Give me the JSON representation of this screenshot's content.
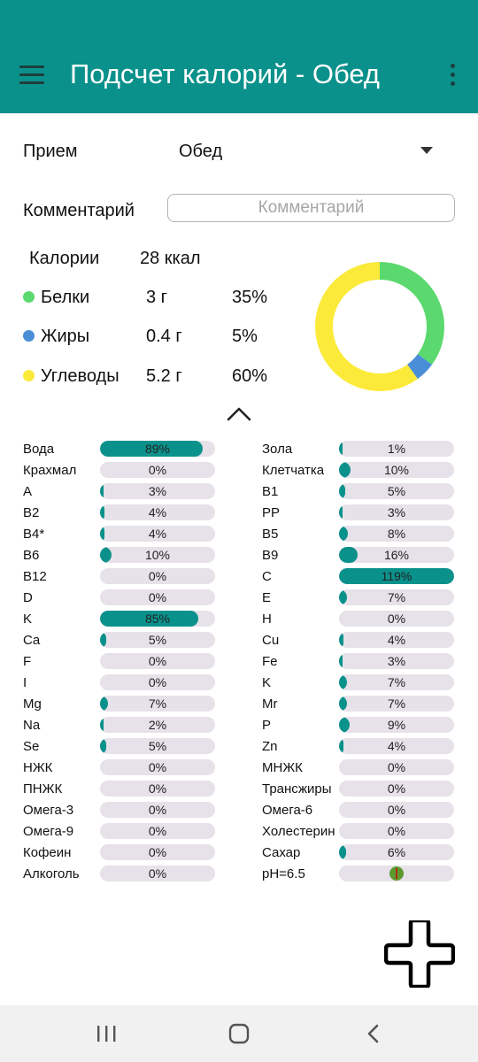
{
  "appbar": {
    "title": "Подсчет калорий - Обед",
    "menu_icon": "hamburger-menu-icon",
    "more_icon": "more-vert-icon",
    "color": "#0b918b"
  },
  "meal": {
    "label": "Прием",
    "value": "Обед"
  },
  "comment": {
    "label": "Комментарий",
    "placeholder": "Комментарий",
    "value": ""
  },
  "summary": {
    "calories_label": "Калории",
    "calories_value": "28 ккал",
    "macros": [
      {
        "name": "Белки",
        "amount": "3 г",
        "percent": "35%",
        "share": 35,
        "color": "#5bd96e"
      },
      {
        "name": "Жиры",
        "amount": "0.4 г",
        "percent": "5%",
        "share": 5,
        "color": "#4a8ed8"
      },
      {
        "name": "Углеводы",
        "amount": "5.2 г",
        "percent": "60%",
        "share": 60,
        "color": "#fbea3a"
      }
    ]
  },
  "nutrients_left": [
    {
      "name": "Вода",
      "text": "89%",
      "value": 89
    },
    {
      "name": "Крахмал",
      "text": "0%",
      "value": 0
    },
    {
      "name": "A",
      "text": "3%",
      "value": 3
    },
    {
      "name": "B2",
      "text": "4%",
      "value": 4
    },
    {
      "name": "B4*",
      "text": "4%",
      "value": 4
    },
    {
      "name": "B6",
      "text": "10%",
      "value": 10
    },
    {
      "name": "B12",
      "text": "0%",
      "value": 0
    },
    {
      "name": "D",
      "text": "0%",
      "value": 0
    },
    {
      "name": "K",
      "text": "85%",
      "value": 85
    },
    {
      "name": "Ca",
      "text": "5%",
      "value": 5
    },
    {
      "name": "F",
      "text": "0%",
      "value": 0
    },
    {
      "name": "I",
      "text": "0%",
      "value": 0
    },
    {
      "name": "Mg",
      "text": "7%",
      "value": 7
    },
    {
      "name": "Na",
      "text": "2%",
      "value": 2
    },
    {
      "name": "Se",
      "text": "5%",
      "value": 5
    },
    {
      "name": "НЖК",
      "text": "0%",
      "value": 0
    },
    {
      "name": "ПНЖК",
      "text": "0%",
      "value": 0
    },
    {
      "name": "Омега-3",
      "text": "0%",
      "value": 0
    },
    {
      "name": "Омега-9",
      "text": "0%",
      "value": 0
    },
    {
      "name": "Кофеин",
      "text": "0%",
      "value": 0
    },
    {
      "name": "Алкоголь",
      "text": "0%",
      "value": 0
    }
  ],
  "nutrients_right": [
    {
      "name": "Зола",
      "text": "1%",
      "value": 1
    },
    {
      "name": "Клетчатка",
      "text": "10%",
      "value": 10
    },
    {
      "name": "B1",
      "text": "5%",
      "value": 5
    },
    {
      "name": "PP",
      "text": "3%",
      "value": 3
    },
    {
      "name": "B5",
      "text": "8%",
      "value": 8
    },
    {
      "name": "B9",
      "text": "16%",
      "value": 16
    },
    {
      "name": "C",
      "text": "119%",
      "value": 119
    },
    {
      "name": "E",
      "text": "7%",
      "value": 7
    },
    {
      "name": "H",
      "text": "0%",
      "value": 0
    },
    {
      "name": "Cu",
      "text": "4%",
      "value": 4
    },
    {
      "name": "Fe",
      "text": "3%",
      "value": 3
    },
    {
      "name": "K",
      "text": "7%",
      "value": 7
    },
    {
      "name": "Mr",
      "text": "7%",
      "value": 7
    },
    {
      "name": "P",
      "text": "9%",
      "value": 9
    },
    {
      "name": "Zn",
      "text": "4%",
      "value": 4
    },
    {
      "name": "МНЖК",
      "text": "0%",
      "value": 0
    },
    {
      "name": "Трансжиры",
      "text": "0%",
      "value": 0
    },
    {
      "name": "Омега-6",
      "text": "0%",
      "value": 0
    },
    {
      "name": "Холестерин",
      "text": "0%",
      "value": 0
    },
    {
      "name": "Сахар",
      "text": "6%",
      "value": 6
    },
    {
      "name": "pH=6.5",
      "text": "",
      "value": null,
      "indicator": "ph-indicator-icon"
    }
  ],
  "icons": {
    "collapse": "chevron-up-icon",
    "fab": "add-plus-icon",
    "nav": [
      "recent-apps-icon",
      "home-icon",
      "back-icon"
    ]
  }
}
